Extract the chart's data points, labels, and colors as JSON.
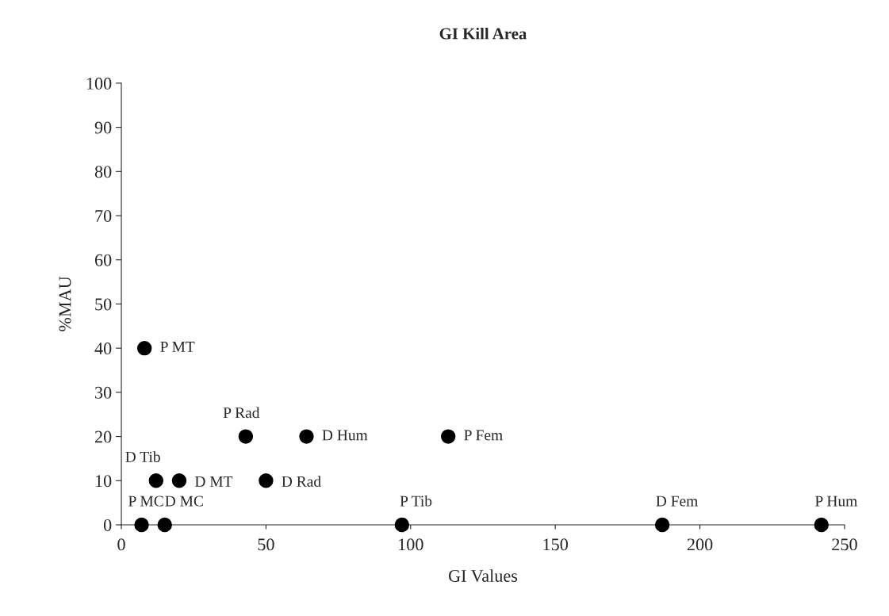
{
  "chart_data": {
    "type": "scatter",
    "title": "GI Kill Area",
    "xlabel": "GI Values",
    "ylabel": "%MAU",
    "x": [
      8,
      12,
      20,
      43,
      50,
      64,
      113,
      7,
      15,
      97,
      187,
      242
    ],
    "values": [
      40,
      10,
      10,
      20,
      10,
      20,
      20,
      0,
      0,
      0,
      0,
      0
    ],
    "color": "#000000",
    "marker": "circle",
    "grid": false,
    "legend": false,
    "xlim": [
      0,
      250
    ],
    "xticks": [
      0,
      50,
      100,
      150,
      200,
      250
    ],
    "ylim": [
      0,
      100
    ],
    "yticks": [
      0,
      10,
      20,
      30,
      40,
      50,
      60,
      70,
      80,
      90,
      100
    ],
    "annotations": [
      {
        "text": "P MT",
        "x": 8,
        "y": 40
      },
      {
        "text": "D Tib",
        "x": 12,
        "y": 10
      },
      {
        "text": "D MT",
        "x": 20,
        "y": 10
      },
      {
        "text": "P Rad",
        "x": 43,
        "y": 20
      },
      {
        "text": "D Rad",
        "x": 50,
        "y": 10
      },
      {
        "text": "D Hum",
        "x": 64,
        "y": 20
      },
      {
        "text": "P Fem",
        "x": 113,
        "y": 20
      },
      {
        "text": "P MC",
        "x": 7,
        "y": 0
      },
      {
        "text": "D MC",
        "x": 15,
        "y": 0
      },
      {
        "text": "P Tib",
        "x": 97,
        "y": 0
      },
      {
        "text": "D Fem",
        "x": 187,
        "y": 0
      },
      {
        "text": "P Hum",
        "x": 242,
        "y": 0
      }
    ]
  }
}
